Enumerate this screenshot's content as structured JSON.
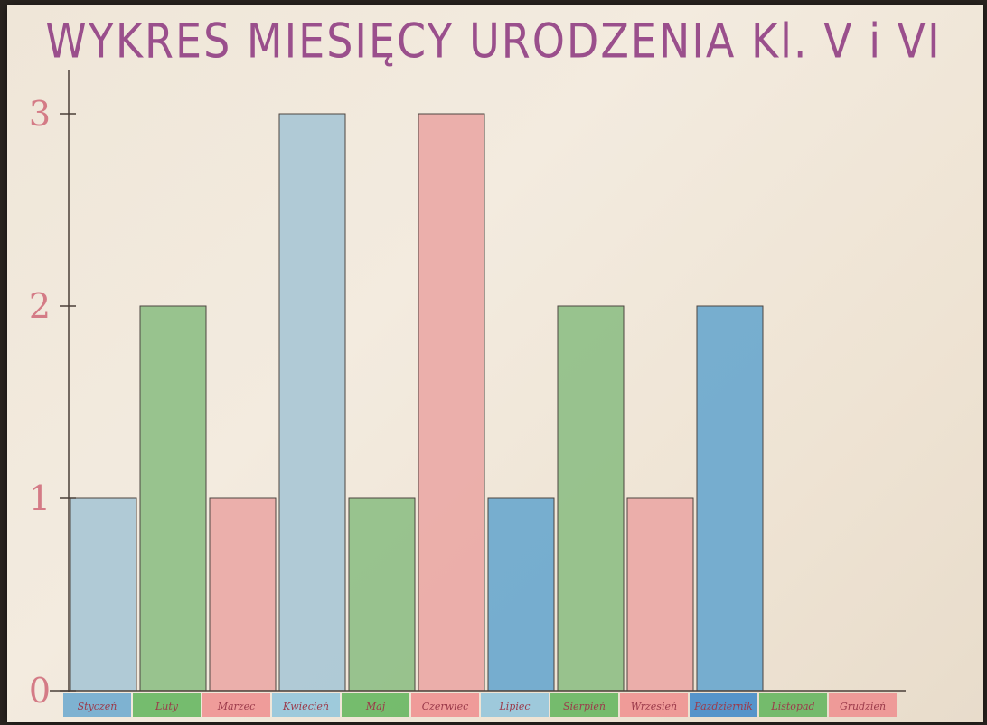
{
  "chart_data": {
    "type": "bar",
    "title": "WYKRES MIESIĘCY URODZENIA Kl. V i VI",
    "xlabel": "",
    "ylabel": "",
    "ylim": [
      0,
      3
    ],
    "yticks": [
      "0",
      "1",
      "2",
      "3"
    ],
    "grid": false,
    "legend": "none",
    "categories": [
      "Styczeń",
      "Luty",
      "Marzec",
      "Kwiecień",
      "Maj",
      "Czerwiec",
      "Lipiec",
      "Sierpień",
      "Wrzesień",
      "Październik",
      "Listopad",
      "Grudzień"
    ],
    "values": [
      1,
      2,
      1,
      3,
      1,
      3,
      1,
      2,
      1,
      2,
      0,
      0
    ],
    "bar_colors": [
      "#a9c7d6",
      "#8fbf86",
      "#eba9a6",
      "#a9c7d6",
      "#8fbf86",
      "#eba9a6",
      "#6aa8cf",
      "#8fbf86",
      "#eba9a6",
      "#6aa8cf",
      "#8fbf86",
      "#eba9a6"
    ],
    "label_colors": [
      "#6aa8cf",
      "#5fb45a",
      "#ee8e8e",
      "#8fc4dc",
      "#5fb45a",
      "#ee8e8e",
      "#8fc4dc",
      "#5fb45a",
      "#ee8e8e",
      "#3b86c9",
      "#5fb45a",
      "#ee8e8e"
    ]
  },
  "colors": {
    "title": "#9a4f8c",
    "axis": "#4a3f38",
    "tick_text": "#d47b86",
    "bar_outline": "#3c3430"
  }
}
